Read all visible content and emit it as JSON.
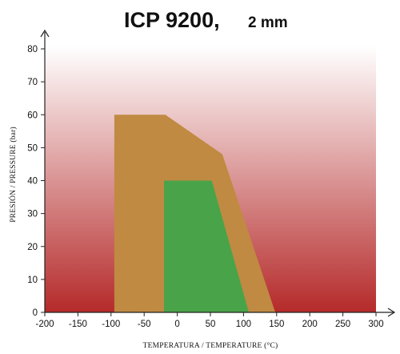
{
  "chart_data": {
    "type": "area",
    "title": "ICP 9200,",
    "subtitle": "2 mm",
    "xlabel": "TEMPERATURA / TEMPERATURE (°C)",
    "ylabel": "PRESIÓN / PRESSURE (bar)",
    "xlim": [
      -200,
      300
    ],
    "ylim": [
      0,
      85
    ],
    "xticks": [
      -200,
      -150,
      -100,
      -50,
      0,
      50,
      100,
      150,
      200,
      250,
      300
    ],
    "yticks": [
      0,
      10,
      20,
      30,
      40,
      50,
      60,
      70,
      80
    ],
    "grid": false,
    "legend": false,
    "regions": [
      {
        "color": "#c08a42",
        "points": [
          [
            -95,
            0
          ],
          [
            -95,
            60
          ],
          [
            -18,
            60
          ],
          [
            68,
            48
          ],
          [
            148,
            0
          ]
        ]
      },
      {
        "color": "#49a349",
        "points": [
          [
            -20,
            0
          ],
          [
            -20,
            40
          ],
          [
            52,
            40
          ],
          [
            108,
            0
          ]
        ]
      }
    ],
    "background_gradient": {
      "top": "#ffffff",
      "bottom": "#b52a2a"
    },
    "axis_color": "#222222"
  }
}
